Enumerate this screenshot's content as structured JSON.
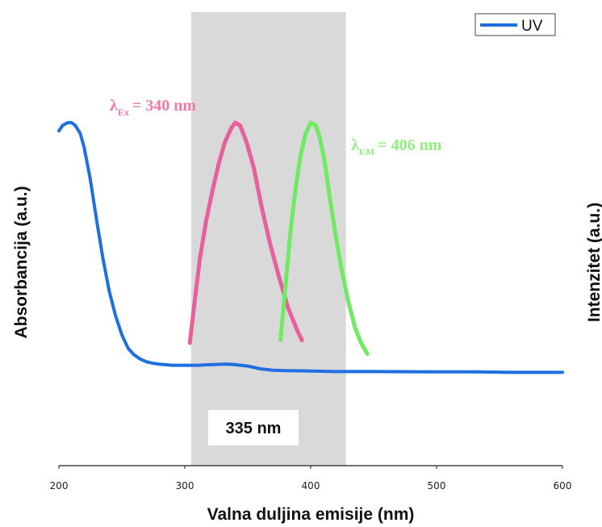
{
  "chart_data": {
    "type": "line",
    "xlabel": "Valna duljina emisije (nm)",
    "ylabel_left": "Absorbancija (a.u.)",
    "ylabel_right": "Intenzitet (a.u.)",
    "xlim": [
      200,
      600
    ],
    "ylim": [
      0,
      1
    ],
    "xticks": [
      200,
      300,
      400,
      500,
      600
    ],
    "grid": false,
    "legend": {
      "placement": "top-right",
      "entries": [
        "UV"
      ]
    },
    "highlight_band": {
      "x_start": 305,
      "x_end": 428,
      "label": "335 nm",
      "color": "#d9d9d9"
    },
    "series": [
      {
        "name": "UV",
        "color": "#1f6fe0",
        "x": [
          200,
          203,
          207,
          210,
          213,
          217,
          220,
          225,
          230,
          235,
          240,
          245,
          250,
          255,
          260,
          265,
          270,
          275,
          280,
          290,
          300,
          310,
          320,
          330,
          335,
          340,
          350,
          360,
          370,
          380,
          400,
          420,
          450,
          500,
          530,
          560,
          600
        ],
        "y": [
          0.97,
          0.99,
          1.0,
          1.0,
          0.99,
          0.96,
          0.91,
          0.79,
          0.64,
          0.5,
          0.38,
          0.29,
          0.22,
          0.17,
          0.145,
          0.13,
          0.12,
          0.115,
          0.112,
          0.108,
          0.108,
          0.108,
          0.11,
          0.112,
          0.112,
          0.11,
          0.105,
          0.095,
          0.09,
          0.088,
          0.087,
          0.085,
          0.085,
          0.084,
          0.084,
          0.082,
          0.082
        ]
      },
      {
        "color": "#e8609b",
        "x": [
          304,
          308,
          312,
          317,
          322,
          327,
          332,
          337,
          340,
          344,
          349,
          355,
          361,
          368,
          375,
          382,
          389,
          393
        ],
        "y": [
          0.19,
          0.35,
          0.5,
          0.64,
          0.75,
          0.85,
          0.93,
          0.98,
          1.0,
          0.99,
          0.93,
          0.83,
          0.69,
          0.55,
          0.43,
          0.32,
          0.24,
          0.2
        ]
      },
      {
        "color": "#6fea62",
        "x": [
          376,
          380,
          384,
          388,
          392,
          396,
          400,
          404,
          407,
          411,
          415,
          420,
          425,
          430,
          435,
          440,
          445
        ],
        "y": [
          0.2,
          0.4,
          0.6,
          0.76,
          0.88,
          0.96,
          1.0,
          0.99,
          0.95,
          0.86,
          0.73,
          0.58,
          0.45,
          0.34,
          0.25,
          0.19,
          0.15
        ]
      }
    ],
    "annotations": [
      {
        "main": "λ",
        "sub": "Ex",
        "value": "= 340 nm",
        "color": "#f07aa6"
      },
      {
        "main": "λ",
        "sub": "EM",
        "value": "= 406 nm",
        "color": "#8ff07f"
      }
    ]
  }
}
